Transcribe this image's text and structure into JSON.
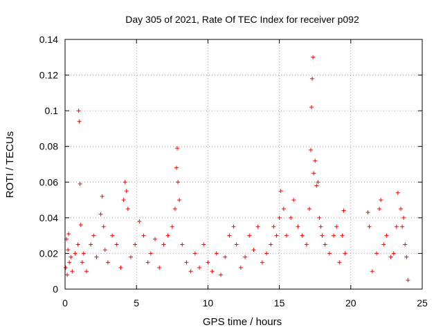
{
  "chart_data": {
    "type": "scatter",
    "title": "Day 305 of 2021, Rate Of TEC Index for receiver p092",
    "xlabel": "GPS time / hours",
    "ylabel": "ROTI / TECUs",
    "xlim": [
      0,
      25
    ],
    "ylim": [
      0,
      0.14
    ],
    "xticks": [
      0,
      5,
      10,
      15,
      20,
      25
    ],
    "yticks": [
      0,
      0.02,
      0.04,
      0.06,
      0.08,
      0.1,
      0.12,
      0.14
    ],
    "xtick_labels": [
      "0",
      "5",
      "10",
      "15",
      "20",
      "25"
    ],
    "ytick_labels": [
      "0",
      "0.02",
      "0.04",
      "0.06",
      "0.08",
      "0.1",
      "0.12",
      "0.14"
    ],
    "grid": true,
    "marker": "+",
    "color": "#ff0000",
    "series": [
      {
        "x": [
          0.05,
          0.1,
          0.15,
          0.2,
          0.25,
          0.3,
          0.4,
          0.5,
          0.7,
          0.9,
          0.95,
          1.0,
          1.05,
          1.1,
          1.2,
          1.3,
          1.5,
          1.8,
          2.0,
          2.2,
          2.5,
          2.6,
          2.7,
          2.8,
          3.0,
          3.3,
          3.6,
          3.9,
          4.1,
          4.2,
          4.3,
          4.4,
          4.6,
          4.9,
          5.2,
          5.5,
          5.8,
          6.0,
          6.3,
          6.6,
          6.9,
          7.2,
          7.5,
          7.7,
          7.8,
          7.85,
          7.9,
          8.0,
          8.2,
          8.5,
          8.8,
          9.1,
          9.4,
          9.7,
          10.0,
          10.3,
          10.6,
          10.9,
          11.2,
          11.5,
          11.8,
          12.0,
          12.3,
          12.6,
          12.9,
          13.2,
          13.5,
          13.8,
          14.1,
          14.4,
          14.6,
          14.8,
          15.0,
          15.1,
          15.3,
          15.5,
          15.8,
          16.0,
          16.3,
          16.6,
          16.9,
          17.1,
          17.2,
          17.25,
          17.3,
          17.35,
          17.4,
          17.5,
          17.6,
          17.7,
          17.8,
          17.9,
          18.0,
          18.2,
          18.5,
          18.8,
          19.0,
          19.2,
          19.4,
          19.5,
          19.6,
          21.2,
          21.3,
          21.5,
          21.8,
          22.0,
          22.1,
          22.3,
          22.5,
          22.8,
          23.0,
          23.2,
          23.3,
          23.5,
          23.6,
          23.7,
          23.8,
          23.9,
          24.0
        ],
        "y": [
          0.012,
          0.028,
          0.008,
          0.022,
          0.031,
          0.015,
          0.018,
          0.01,
          0.02,
          0.025,
          0.1,
          0.094,
          0.059,
          0.036,
          0.015,
          0.02,
          0.01,
          0.025,
          0.03,
          0.018,
          0.042,
          0.052,
          0.035,
          0.022,
          0.015,
          0.03,
          0.025,
          0.012,
          0.05,
          0.06,
          0.055,
          0.045,
          0.018,
          0.025,
          0.038,
          0.03,
          0.015,
          0.02,
          0.028,
          0.012,
          0.025,
          0.03,
          0.035,
          0.045,
          0.068,
          0.079,
          0.06,
          0.05,
          0.025,
          0.015,
          0.01,
          0.02,
          0.012,
          0.025,
          0.015,
          0.01,
          0.02,
          0.008,
          0.018,
          0.03,
          0.035,
          0.025,
          0.012,
          0.018,
          0.03,
          0.022,
          0.035,
          0.015,
          0.02,
          0.025,
          0.035,
          0.03,
          0.04,
          0.055,
          0.045,
          0.03,
          0.04,
          0.05,
          0.035,
          0.03,
          0.025,
          0.045,
          0.078,
          0.102,
          0.118,
          0.13,
          0.065,
          0.072,
          0.058,
          0.06,
          0.04,
          0.035,
          0.03,
          0.025,
          0.02,
          0.03,
          0.035,
          0.015,
          0.03,
          0.044,
          0.02,
          0.043,
          0.035,
          0.01,
          0.02,
          0.045,
          0.05,
          0.025,
          0.03,
          0.018,
          0.02,
          0.035,
          0.054,
          0.045,
          0.035,
          0.04,
          0.025,
          0.018,
          0.005
        ]
      }
    ]
  }
}
